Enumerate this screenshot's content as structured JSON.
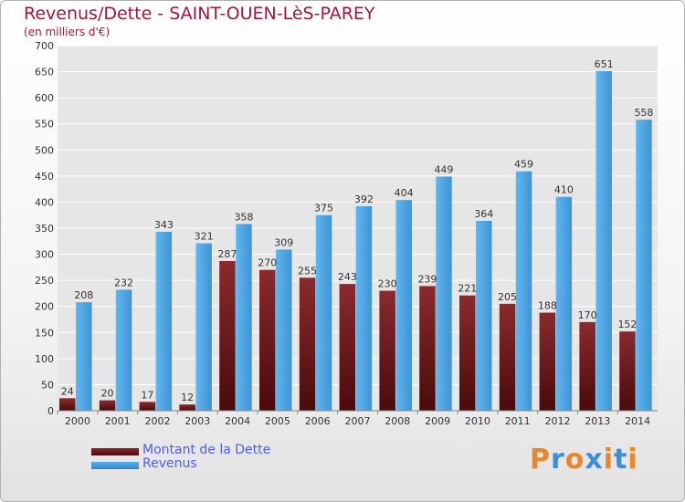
{
  "title": "Revenus/Dette - SAINT-OUEN-LèS-PAREY",
  "subtitle": "(en milliers d'€)",
  "legend": {
    "debt_label": "Montant de la Dette",
    "revenue_label": "Revenus"
  },
  "logo": {
    "text": "Proxiti"
  },
  "colors": {
    "debt_top": "#8a2a2d",
    "debt_bottom": "#4a0a0c",
    "revenue_light": "#5ab0ea",
    "revenue_dark": "#2f86c8",
    "grid": "#ffffff",
    "title": "#a3163a",
    "legend_text": "#4d5ee8"
  },
  "chart_data": {
    "type": "bar",
    "title": "Revenus/Dette - SAINT-OUEN-LèS-PAREY",
    "ylabel": "(en milliers d'€)",
    "xlabel": "",
    "ylim": [
      0,
      700
    ],
    "ytick_step": 50,
    "grid": true,
    "legend_position": "bottom-left",
    "categories": [
      "2000",
      "2001",
      "2002",
      "2003",
      "2004",
      "2005",
      "2006",
      "2007",
      "2008",
      "2009",
      "2010",
      "2011",
      "2012",
      "2013",
      "2014"
    ],
    "series": [
      {
        "name": "Montant de la Dette",
        "values": [
          24,
          20,
          17,
          12,
          287,
          270,
          255,
          243,
          230,
          239,
          221,
          205,
          188,
          170,
          152
        ]
      },
      {
        "name": "Revenus",
        "values": [
          208,
          232,
          343,
          321,
          358,
          309,
          375,
          392,
          404,
          449,
          364,
          459,
          410,
          651,
          558
        ]
      }
    ]
  }
}
